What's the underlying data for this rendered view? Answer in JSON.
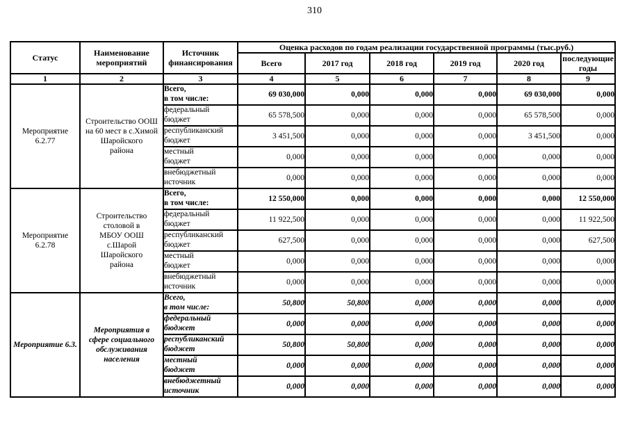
{
  "page": {
    "number": "310"
  },
  "table": {
    "header": {
      "status": "Статус",
      "name": "Наименование\nмероприятий",
      "source": "Источник\nфинансирования",
      "group": "Оценка расходов по годам реализации государственной программы (тыс.руб.)",
      "cols": [
        "Всего",
        "2017 год",
        "2018 год",
        "2019 год",
        "2020 год",
        "последующие годы"
      ],
      "col_numbers": [
        "1",
        "2",
        "3",
        "4",
        "5",
        "6",
        "7",
        "8",
        "9"
      ]
    },
    "blocks": [
      {
        "status": "Мероприятие\n6.2.77",
        "name": "Строительство ООШ\nна 60 мест в с.Химой\nШаройского\nрайона",
        "emphasis": false,
        "rows": [
          {
            "source": "Всего,\nв том числе:",
            "bold": true,
            "values": [
              "69 030,000",
              "0,000",
              "0,000",
              "0,000",
              "69 030,000",
              "0,000"
            ]
          },
          {
            "source": "федеральный\nбюджет",
            "bold": false,
            "values": [
              "65 578,500",
              "0,000",
              "0,000",
              "0,000",
              "65 578,500",
              "0,000"
            ]
          },
          {
            "source": "республиканский\nбюджет",
            "bold": false,
            "values": [
              "3 451,500",
              "0,000",
              "0,000",
              "0,000",
              "3 451,500",
              "0,000"
            ]
          },
          {
            "source": "местный\nбюджет",
            "bold": false,
            "values": [
              "0,000",
              "0,000",
              "0,000",
              "0,000",
              "0,000",
              "0,000"
            ]
          },
          {
            "source": "внебюджетный\nисточник",
            "bold": false,
            "values": [
              "0,000",
              "0,000",
              "0,000",
              "0,000",
              "0,000",
              "0,000"
            ]
          }
        ]
      },
      {
        "status": "Мероприятие\n6.2.78",
        "name": "Строительство\nстоловой в\nМБОУ ООШ\nс.Шарой\nШаройского\nрайона",
        "emphasis": false,
        "rows": [
          {
            "source": "Всего,\nв том числе:",
            "bold": true,
            "values": [
              "12 550,000",
              "0,000",
              "0,000",
              "0,000",
              "0,000",
              "12 550,000"
            ]
          },
          {
            "source": "федеральный\nбюджет",
            "bold": false,
            "values": [
              "11 922,500",
              "0,000",
              "0,000",
              "0,000",
              "0,000",
              "11 922,500"
            ]
          },
          {
            "source": "республиканский\nбюджет",
            "bold": false,
            "values": [
              "627,500",
              "0,000",
              "0,000",
              "0,000",
              "0,000",
              "627,500"
            ]
          },
          {
            "source": "местный\nбюджет",
            "bold": false,
            "values": [
              "0,000",
              "0,000",
              "0,000",
              "0,000",
              "0,000",
              "0,000"
            ]
          },
          {
            "source": "внебюджетный\nисточник",
            "bold": false,
            "values": [
              "0,000",
              "0,000",
              "0,000",
              "0,000",
              "0,000",
              "0,000"
            ]
          }
        ]
      },
      {
        "status": "Мероприятие 6.3.",
        "name": "Мероприятия в\nсфере социального\nобслуживания\nнаселения",
        "emphasis": true,
        "rows": [
          {
            "source": "Всего,\nв том числе:",
            "bold": true,
            "values": [
              "50,800",
              "50,800",
              "0,000",
              "0,000",
              "0,000",
              "0,000"
            ]
          },
          {
            "source": "федеральный\nбюджет",
            "bold": false,
            "values": [
              "0,000",
              "0,000",
              "0,000",
              "0,000",
              "0,000",
              "0,000"
            ]
          },
          {
            "source": "республиканский\nбюджет",
            "bold": false,
            "values": [
              "50,800",
              "50,800",
              "0,000",
              "0,000",
              "0,000",
              "0,000"
            ]
          },
          {
            "source": "местный\nбюджет",
            "bold": false,
            "values": [
              "0,000",
              "0,000",
              "0,000",
              "0,000",
              "0,000",
              "0,000"
            ]
          },
          {
            "source": "внебюджетный\nисточник",
            "bold": false,
            "values": [
              "0,000",
              "0,000",
              "0,000",
              "0,000",
              "0,000",
              "0,000"
            ]
          }
        ]
      }
    ]
  }
}
